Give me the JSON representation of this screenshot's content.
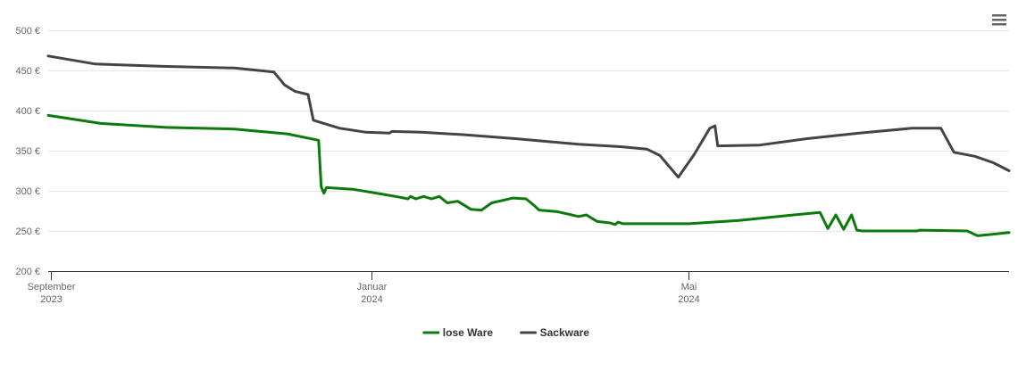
{
  "menu_icon": "hamburger-menu-icon",
  "chart_data": {
    "type": "line",
    "title": "",
    "xlabel": "",
    "ylabel": "",
    "ylim": [
      200,
      500
    ],
    "y_ticks": [
      {
        "value": 200,
        "label": "200 €"
      },
      {
        "value": 250,
        "label": "250 €"
      },
      {
        "value": 300,
        "label": "300 €"
      },
      {
        "value": 350,
        "label": "350 €"
      },
      {
        "value": 400,
        "label": "400 €"
      },
      {
        "value": 450,
        "label": "450 €"
      },
      {
        "value": 500,
        "label": "500 €"
      }
    ],
    "x_range": [
      "2023-08-31",
      "2024-08-31"
    ],
    "x_ticks": [
      {
        "date": "2023-09-01",
        "label": "September",
        "sublabel": "2023"
      },
      {
        "date": "2024-01-01",
        "label": "Januar",
        "sublabel": "2024"
      },
      {
        "date": "2024-05-01",
        "label": "Mai",
        "sublabel": "2024"
      }
    ],
    "grid": true,
    "legend_position": "bottom-center",
    "series": [
      {
        "name": "lose Ware",
        "color": "#0b7a0b",
        "points": [
          [
            "2023-08-31",
            394
          ],
          [
            "2023-09-20",
            384
          ],
          [
            "2023-10-15",
            379
          ],
          [
            "2023-11-10",
            377
          ],
          [
            "2023-11-30",
            371
          ],
          [
            "2023-12-12",
            363
          ],
          [
            "2023-12-13",
            305
          ],
          [
            "2023-12-14",
            297
          ],
          [
            "2023-12-15",
            304
          ],
          [
            "2023-12-25",
            302
          ],
          [
            "2024-01-05",
            296
          ],
          [
            "2024-01-12",
            292
          ],
          [
            "2024-01-15",
            290
          ],
          [
            "2024-01-16",
            293
          ],
          [
            "2024-01-18",
            290
          ],
          [
            "2024-01-21",
            293
          ],
          [
            "2024-01-24",
            290
          ],
          [
            "2024-01-27",
            293
          ],
          [
            "2024-01-30",
            285
          ],
          [
            "2024-02-03",
            287
          ],
          [
            "2024-02-08",
            277
          ],
          [
            "2024-02-12",
            276
          ],
          [
            "2024-02-16",
            285
          ],
          [
            "2024-02-24",
            291
          ],
          [
            "2024-02-29",
            290
          ],
          [
            "2024-03-03",
            282
          ],
          [
            "2024-03-05",
            276
          ],
          [
            "2024-03-12",
            274
          ],
          [
            "2024-03-20",
            268
          ],
          [
            "2024-03-23",
            270
          ],
          [
            "2024-03-27",
            262
          ],
          [
            "2024-04-01",
            260
          ],
          [
            "2024-04-03",
            258
          ],
          [
            "2024-04-04",
            261
          ],
          [
            "2024-04-06",
            259
          ],
          [
            "2024-04-15",
            259
          ],
          [
            "2024-05-01",
            259
          ],
          [
            "2024-05-20",
            263
          ],
          [
            "2024-06-10",
            270
          ],
          [
            "2024-06-20",
            273
          ],
          [
            "2024-06-23",
            253
          ],
          [
            "2024-06-26",
            270
          ],
          [
            "2024-06-29",
            252
          ],
          [
            "2024-07-02",
            270
          ],
          [
            "2024-07-04",
            251
          ],
          [
            "2024-07-06",
            250
          ],
          [
            "2024-07-27",
            250
          ],
          [
            "2024-07-28",
            251
          ],
          [
            "2024-08-15",
            250
          ],
          [
            "2024-08-19",
            244
          ],
          [
            "2024-08-25",
            246
          ],
          [
            "2024-08-31",
            248
          ]
        ]
      },
      {
        "name": "Sackware",
        "color": "#434348",
        "points": [
          [
            "2023-08-31",
            468
          ],
          [
            "2023-09-18",
            458
          ],
          [
            "2023-10-15",
            455
          ],
          [
            "2023-11-10",
            453
          ],
          [
            "2023-11-25",
            448
          ],
          [
            "2023-11-29",
            432
          ],
          [
            "2023-12-03",
            424
          ],
          [
            "2023-12-08",
            420
          ],
          [
            "2023-12-10",
            388
          ],
          [
            "2023-12-20",
            378
          ],
          [
            "2023-12-30",
            373
          ],
          [
            "2024-01-08",
            372
          ],
          [
            "2024-01-09",
            374
          ],
          [
            "2024-01-20",
            373
          ],
          [
            "2024-02-05",
            370
          ],
          [
            "2024-02-25",
            365
          ],
          [
            "2024-03-20",
            358
          ],
          [
            "2024-04-05",
            355
          ],
          [
            "2024-04-15",
            352
          ],
          [
            "2024-04-20",
            344
          ],
          [
            "2024-04-27",
            317
          ],
          [
            "2024-05-03",
            345
          ],
          [
            "2024-05-09",
            378
          ],
          [
            "2024-05-11",
            381
          ],
          [
            "2024-05-12",
            356
          ],
          [
            "2024-05-28",
            357
          ],
          [
            "2024-06-15",
            365
          ],
          [
            "2024-07-05",
            372
          ],
          [
            "2024-07-25",
            378
          ],
          [
            "2024-08-05",
            378
          ],
          [
            "2024-08-10",
            348
          ],
          [
            "2024-08-18",
            343
          ],
          [
            "2024-08-25",
            335
          ],
          [
            "2024-08-31",
            325
          ]
        ]
      }
    ]
  }
}
